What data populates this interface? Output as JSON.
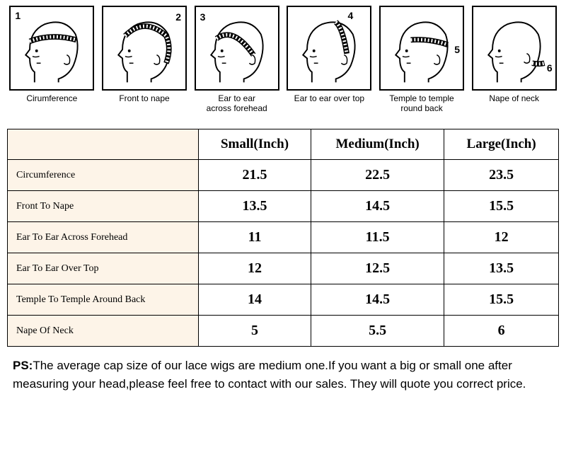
{
  "diagrams": [
    {
      "num": "1",
      "label": "Cirumference",
      "num_pos": "top:4px;left:6px"
    },
    {
      "num": "2",
      "label": "Front to nape",
      "num_pos": "top:6px;right:6px"
    },
    {
      "num": "3",
      "label": "Ear to ear\nacross forehead",
      "num_pos": "top:6px;left:6px"
    },
    {
      "num": "4",
      "label": "Ear to ear over top",
      "num_pos": "top:4px;right:24px"
    },
    {
      "num": "5",
      "label": "Temple to temple\nround back",
      "num_pos": "top:52px;right:4px"
    },
    {
      "num": "6",
      "label": "Nape of neck",
      "num_pos": "top:78px;right:4px"
    }
  ],
  "table": {
    "columns": [
      "Small(Inch)",
      "Medium(Inch)",
      "Large(Inch)"
    ],
    "rows": [
      {
        "label": "Circumference",
        "values": [
          "21.5",
          "22.5",
          "23.5"
        ]
      },
      {
        "label": "Front To Nape",
        "values": [
          "13.5",
          "14.5",
          "15.5"
        ]
      },
      {
        "label": "Ear To Ear Across Forehead",
        "values": [
          "11",
          "11.5",
          "12"
        ]
      },
      {
        "label": "Ear To Ear Over Top",
        "values": [
          "12",
          "12.5",
          "13.5"
        ]
      },
      {
        "label": "Temple To Temple Around Back",
        "values": [
          "14",
          "14.5",
          "15.5"
        ]
      },
      {
        "label": "Nape Of Neck",
        "values": [
          "5",
          "5.5",
          "6"
        ]
      }
    ],
    "header_bg": "#fdf4e8",
    "label_bg": "#fdf4e8"
  },
  "ps": {
    "prefix": "PS:",
    "text": "The average cap size of our lace wigs are medium one.If you want a big or small one after measuring your head,please feel free to contact with our sales. They will quote you correct price."
  }
}
